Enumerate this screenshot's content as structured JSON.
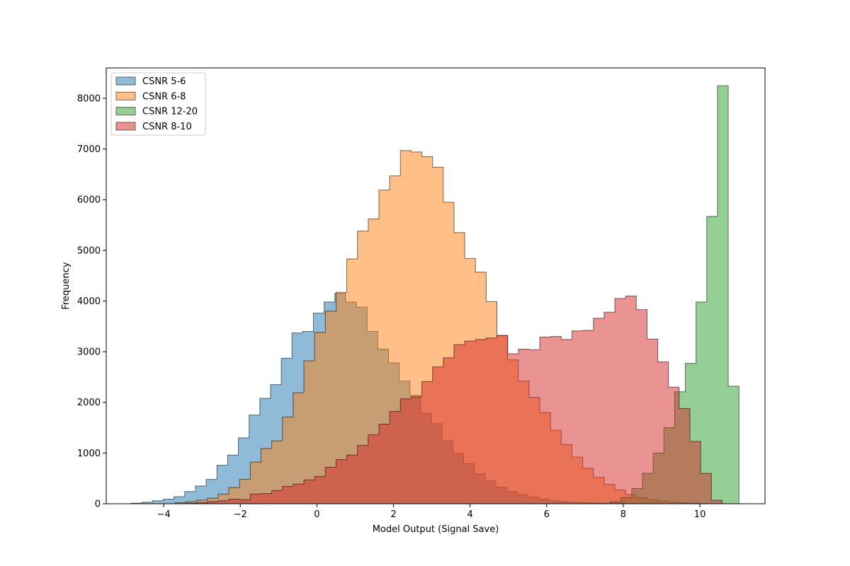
{
  "chart_data": {
    "type": "histogram",
    "xlabel": "Model Output (Signal Save)",
    "ylabel": "Frequency",
    "xlim": [
      -5.5,
      11.7
    ],
    "ylim": [
      0,
      8600
    ],
    "x_ticks": [
      -4,
      -2,
      0,
      2,
      4,
      6,
      8,
      10
    ],
    "y_ticks": [
      0,
      1000,
      2000,
      3000,
      4000,
      5000,
      6000,
      7000,
      8000
    ],
    "tick_labels_x": [
      "−4",
      "−2",
      "0",
      "2",
      "4",
      "6",
      "8",
      "10"
    ],
    "tick_labels_y": [
      "0",
      "1000",
      "2000",
      "3000",
      "4000",
      "5000",
      "6000",
      "7000",
      "8000"
    ],
    "legend_position": "upper-left",
    "series": [
      {
        "name": "CSNR 5-6",
        "color": "#1f77b4",
        "bin_start": -4.85,
        "bin_width": 0.28,
        "counts": [
          10,
          30,
          60,
          90,
          140,
          240,
          350,
          480,
          760,
          960,
          1300,
          1750,
          2080,
          2350,
          2870,
          3370,
          3400,
          3760,
          3980,
          4150,
          3980,
          3880,
          3400,
          3050,
          2780,
          2420,
          2140,
          1780,
          1580,
          1240,
          990,
          790,
          590,
          450,
          330,
          240,
          180,
          130,
          90,
          60,
          40,
          30,
          20,
          15,
          10,
          8
        ]
      },
      {
        "name": "CSNR 6-8",
        "color": "#ff7f0e",
        "bin_start": -3.7,
        "bin_width": 0.28,
        "counts": [
          20,
          40,
          70,
          110,
          190,
          320,
          480,
          820,
          1090,
          1240,
          1710,
          2190,
          2820,
          3380,
          3800,
          4170,
          4830,
          5380,
          5620,
          6190,
          6470,
          6970,
          6940,
          6850,
          6640,
          5950,
          5350,
          4840,
          4570,
          3990,
          3320,
          2840,
          2420,
          2100,
          1800,
          1450,
          1170,
          920,
          700,
          520,
          380,
          270,
          180,
          120,
          80,
          50,
          30,
          15,
          8
        ]
      },
      {
        "name": "CSNR 12-20",
        "color": "#2ca02c",
        "bin_start": 7.66,
        "bin_width": 0.28,
        "counts": [
          40,
          120,
          300,
          600,
          1000,
          1500,
          2210,
          2770,
          3980,
          5670,
          8250,
          2320
        ]
      },
      {
        "name": "CSNR 8-10",
        "color": "#d62728",
        "bin_start": -3.42,
        "bin_width": 0.28,
        "counts": [
          10,
          20,
          40,
          60,
          90,
          80,
          190,
          200,
          260,
          340,
          390,
          470,
          540,
          720,
          870,
          960,
          1150,
          1360,
          1570,
          1820,
          2070,
          2110,
          2410,
          2700,
          2880,
          3140,
          3210,
          3240,
          3270,
          3320,
          2960,
          3050,
          3040,
          3290,
          3300,
          3240,
          3410,
          3420,
          3660,
          3780,
          4050,
          4100,
          3830,
          3250,
          2800,
          2300,
          1880,
          1230,
          600,
          70
        ]
      }
    ]
  }
}
